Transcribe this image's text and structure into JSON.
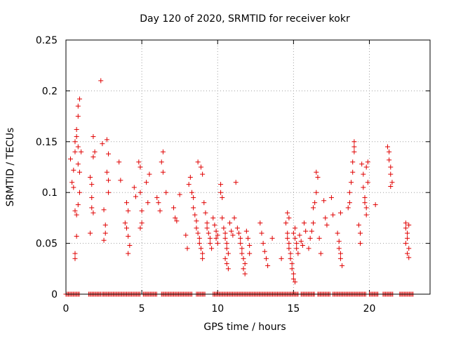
{
  "chart_data": {
    "type": "scatter",
    "title": "Day 120 of 2020, SRMTID for receiver kokr",
    "xlabel": "GPS time / hours",
    "ylabel": "SRMTID / TECUs",
    "xlim": [
      0,
      24
    ],
    "ylim": [
      0,
      0.25
    ],
    "xticks": [
      0,
      5,
      10,
      15,
      20
    ],
    "yticks": [
      0,
      0.05,
      0.1,
      0.15,
      0.2,
      0.25
    ],
    "xtick_labels": [
      "0",
      "5",
      "10",
      "15",
      "20"
    ],
    "ytick_labels": [
      "0",
      "0.05",
      "0.1",
      "0.15",
      "0.2",
      "0.25"
    ],
    "grid": true,
    "marker": "+",
    "series": [
      {
        "name": "SRMTID",
        "color": "#e00000",
        "points": [
          [
            0.3,
            0.133
          ],
          [
            0.4,
            0.11
          ],
          [
            0.5,
            0.122
          ],
          [
            0.5,
            0.105
          ],
          [
            0.6,
            0.14
          ],
          [
            0.6,
            0.15
          ],
          [
            0.7,
            0.162
          ],
          [
            0.7,
            0.155
          ],
          [
            0.8,
            0.145
          ],
          [
            0.8,
            0.128
          ],
          [
            0.9,
            0.12
          ],
          [
            0.6,
            0.082
          ],
          [
            0.7,
            0.078
          ],
          [
            0.8,
            0.088
          ],
          [
            0.6,
            0.04
          ],
          [
            0.6,
            0.035
          ],
          [
            0.7,
            0.057
          ],
          [
            0.8,
            0.175
          ],
          [
            0.8,
            0.185
          ],
          [
            0.9,
            0.192
          ],
          [
            1.0,
            0.14
          ],
          [
            0.9,
            0.1
          ],
          [
            1.6,
            0.115
          ],
          [
            1.7,
            0.108
          ],
          [
            1.7,
            0.095
          ],
          [
            1.8,
            0.135
          ],
          [
            1.9,
            0.14
          ],
          [
            1.8,
            0.155
          ],
          [
            1.7,
            0.085
          ],
          [
            1.8,
            0.08
          ],
          [
            1.6,
            0.06
          ],
          [
            2.3,
            0.21
          ],
          [
            2.4,
            0.148
          ],
          [
            2.5,
            0.083
          ],
          [
            2.6,
            0.068
          ],
          [
            2.6,
            0.06
          ],
          [
            2.5,
            0.053
          ],
          [
            2.7,
            0.152
          ],
          [
            2.8,
            0.138
          ],
          [
            2.7,
            0.12
          ],
          [
            2.8,
            0.112
          ],
          [
            2.8,
            0.1
          ],
          [
            3.5,
            0.13
          ],
          [
            3.6,
            0.112
          ],
          [
            4.0,
            0.09
          ],
          [
            4.1,
            0.082
          ],
          [
            3.9,
            0.07
          ],
          [
            4.0,
            0.065
          ],
          [
            4.1,
            0.057
          ],
          [
            4.2,
            0.048
          ],
          [
            4.1,
            0.04
          ],
          [
            4.5,
            0.105
          ],
          [
            4.6,
            0.096
          ],
          [
            4.8,
            0.13
          ],
          [
            4.9,
            0.125
          ],
          [
            4.9,
            0.1
          ],
          [
            5.0,
            0.082
          ],
          [
            5.0,
            0.07
          ],
          [
            4.9,
            0.065
          ],
          [
            5.3,
            0.11
          ],
          [
            5.4,
            0.09
          ],
          [
            5.5,
            0.118
          ],
          [
            6.0,
            0.095
          ],
          [
            6.1,
            0.09
          ],
          [
            6.2,
            0.082
          ],
          [
            6.3,
            0.13
          ],
          [
            6.4,
            0.14
          ],
          [
            6.4,
            0.12
          ],
          [
            6.6,
            0.1
          ],
          [
            7.1,
            0.085
          ],
          [
            7.2,
            0.075
          ],
          [
            7.3,
            0.072
          ],
          [
            7.5,
            0.098
          ],
          [
            7.9,
            0.058
          ],
          [
            8.0,
            0.045
          ],
          [
            8.1,
            0.108
          ],
          [
            8.2,
            0.115
          ],
          [
            8.3,
            0.1
          ],
          [
            8.4,
            0.095
          ],
          [
            8.4,
            0.085
          ],
          [
            8.5,
            0.078
          ],
          [
            8.6,
            0.072
          ],
          [
            8.6,
            0.065
          ],
          [
            8.7,
            0.06
          ],
          [
            8.8,
            0.055
          ],
          [
            8.8,
            0.05
          ],
          [
            8.9,
            0.045
          ],
          [
            9.0,
            0.04
          ],
          [
            9.0,
            0.035
          ],
          [
            8.7,
            0.13
          ],
          [
            8.9,
            0.125
          ],
          [
            9.0,
            0.118
          ],
          [
            9.1,
            0.09
          ],
          [
            9.2,
            0.08
          ],
          [
            9.3,
            0.07
          ],
          [
            9.3,
            0.065
          ],
          [
            9.4,
            0.06
          ],
          [
            9.5,
            0.055
          ],
          [
            9.5,
            0.05
          ],
          [
            9.6,
            0.045
          ],
          [
            9.7,
            0.075
          ],
          [
            9.8,
            0.068
          ],
          [
            9.9,
            0.062
          ],
          [
            10.0,
            0.058
          ],
          [
            9.9,
            0.055
          ],
          [
            10.0,
            0.05
          ],
          [
            10.2,
            0.1
          ],
          [
            10.3,
            0.095
          ],
          [
            10.2,
            0.108
          ],
          [
            10.3,
            0.075
          ],
          [
            10.4,
            0.065
          ],
          [
            10.5,
            0.06
          ],
          [
            10.5,
            0.055
          ],
          [
            10.6,
            0.05
          ],
          [
            10.6,
            0.045
          ],
          [
            10.7,
            0.04
          ],
          [
            10.5,
            0.035
          ],
          [
            10.6,
            0.03
          ],
          [
            10.7,
            0.025
          ],
          [
            10.8,
            0.07
          ],
          [
            10.9,
            0.062
          ],
          [
            11.0,
            0.058
          ],
          [
            11.1,
            0.075
          ],
          [
            11.2,
            0.11
          ],
          [
            11.3,
            0.065
          ],
          [
            11.4,
            0.06
          ],
          [
            11.5,
            0.055
          ],
          [
            11.5,
            0.05
          ],
          [
            11.6,
            0.045
          ],
          [
            11.6,
            0.04
          ],
          [
            11.7,
            0.035
          ],
          [
            11.8,
            0.03
          ],
          [
            11.7,
            0.025
          ],
          [
            11.8,
            0.02
          ],
          [
            11.9,
            0.062
          ],
          [
            12.0,
            0.055
          ],
          [
            12.1,
            0.048
          ],
          [
            12.1,
            0.04
          ],
          [
            12.8,
            0.07
          ],
          [
            12.9,
            0.06
          ],
          [
            13.0,
            0.05
          ],
          [
            13.1,
            0.042
          ],
          [
            13.2,
            0.035
          ],
          [
            13.3,
            0.028
          ],
          [
            13.6,
            0.055
          ],
          [
            14.2,
            0.035
          ],
          [
            14.5,
            0.07
          ],
          [
            14.6,
            0.06
          ],
          [
            14.6,
            0.055
          ],
          [
            14.7,
            0.05
          ],
          [
            14.7,
            0.045
          ],
          [
            14.8,
            0.04
          ],
          [
            14.8,
            0.035
          ],
          [
            14.9,
            0.03
          ],
          [
            14.9,
            0.025
          ],
          [
            15.0,
            0.02
          ],
          [
            15.0,
            0.015
          ],
          [
            15.1,
            0.012
          ],
          [
            14.6,
            0.08
          ],
          [
            14.7,
            0.075
          ],
          [
            15.0,
            0.06
          ],
          [
            15.1,
            0.055
          ],
          [
            15.2,
            0.05
          ],
          [
            15.2,
            0.045
          ],
          [
            15.3,
            0.04
          ],
          [
            15.1,
            0.065
          ],
          [
            15.4,
            0.058
          ],
          [
            15.5,
            0.052
          ],
          [
            15.6,
            0.048
          ],
          [
            15.7,
            0.07
          ],
          [
            15.8,
            0.062
          ],
          [
            16.0,
            0.045
          ],
          [
            16.1,
            0.055
          ],
          [
            16.2,
            0.062
          ],
          [
            16.3,
            0.07
          ],
          [
            16.3,
            0.085
          ],
          [
            16.4,
            0.09
          ],
          [
            16.5,
            0.1
          ],
          [
            16.5,
            0.12
          ],
          [
            16.6,
            0.115
          ],
          [
            16.7,
            0.055
          ],
          [
            16.8,
            0.04
          ],
          [
            17.0,
            0.092
          ],
          [
            17.1,
            0.075
          ],
          [
            17.2,
            0.068
          ],
          [
            17.5,
            0.095
          ],
          [
            17.6,
            0.078
          ],
          [
            17.9,
            0.06
          ],
          [
            18.0,
            0.052
          ],
          [
            18.0,
            0.045
          ],
          [
            18.1,
            0.04
          ],
          [
            18.1,
            0.035
          ],
          [
            18.2,
            0.028
          ],
          [
            18.1,
            0.08
          ],
          [
            18.6,
            0.085
          ],
          [
            18.7,
            0.09
          ],
          [
            18.7,
            0.1
          ],
          [
            18.8,
            0.11
          ],
          [
            18.9,
            0.12
          ],
          [
            18.9,
            0.13
          ],
          [
            19.0,
            0.14
          ],
          [
            19.0,
            0.15
          ],
          [
            19.0,
            0.145
          ],
          [
            19.3,
            0.068
          ],
          [
            19.4,
            0.06
          ],
          [
            19.4,
            0.05
          ],
          [
            19.5,
            0.128
          ],
          [
            19.6,
            0.118
          ],
          [
            19.6,
            0.105
          ],
          [
            19.7,
            0.095
          ],
          [
            19.7,
            0.09
          ],
          [
            19.8,
            0.085
          ],
          [
            19.8,
            0.078
          ],
          [
            19.9,
            0.11
          ],
          [
            19.8,
            0.125
          ],
          [
            19.9,
            0.13
          ],
          [
            20.4,
            0.088
          ],
          [
            21.2,
            0.145
          ],
          [
            21.3,
            0.14
          ],
          [
            21.3,
            0.132
          ],
          [
            21.4,
            0.125
          ],
          [
            21.4,
            0.118
          ],
          [
            21.5,
            0.11
          ],
          [
            21.4,
            0.106
          ],
          [
            22.4,
            0.07
          ],
          [
            22.4,
            0.065
          ],
          [
            22.5,
            0.06
          ],
          [
            22.5,
            0.055
          ],
          [
            22.4,
            0.05
          ],
          [
            22.6,
            0.045
          ],
          [
            22.5,
            0.04
          ],
          [
            22.6,
            0.036
          ],
          [
            22.6,
            0.068
          ]
        ]
      }
    ],
    "zero_markers": {
      "value": 0,
      "x_ranges": [
        [
          0.0,
          0.9
        ],
        [
          1.5,
          2.3
        ],
        [
          2.4,
          4.9
        ],
        [
          5.1,
          6.0
        ],
        [
          6.3,
          8.3
        ],
        [
          8.6,
          9.2
        ],
        [
          9.7,
          15.3
        ],
        [
          15.5,
          16.4
        ],
        [
          16.6,
          17.4
        ],
        [
          17.6,
          19.8
        ],
        [
          20.0,
          20.6
        ],
        [
          20.9,
          21.6
        ],
        [
          22.0,
          22.9
        ]
      ],
      "step": 0.08
    }
  }
}
